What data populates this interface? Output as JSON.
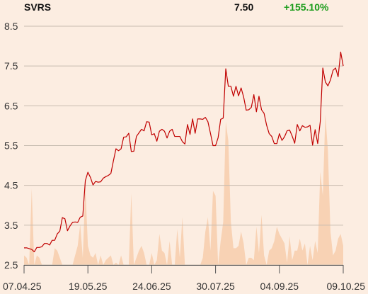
{
  "header": {
    "ticker": "SVRS",
    "last_price": "7.50",
    "change_pct": "+155.10%"
  },
  "colors": {
    "background": "#fcede1",
    "price_line": "#c00000",
    "volume_fill": "#f8d2b4",
    "grid": "#c7bcb0",
    "axis": "#555555",
    "change_positive": "#1a9c1a"
  },
  "chart_data": {
    "type": "line",
    "title": "",
    "xlabel": "",
    "ylabel": "",
    "ylim": [
      2.5,
      8.5
    ],
    "y_ticks": [
      "2.5",
      "3.5",
      "4.5",
      "5.5",
      "6.5",
      "7.5",
      "8.5"
    ],
    "x_ticks": [
      "07.04.25",
      "19.05.25",
      "24.06.25",
      "30.07.25",
      "04.09.25",
      "09.10.25"
    ],
    "grid": "horizontal",
    "series": [
      {
        "kind": "price-line",
        "values": [
          2.93,
          2.93,
          2.91,
          2.89,
          2.83,
          2.94,
          2.94,
          2.96,
          3.04,
          3.04,
          3.0,
          3.12,
          3.12,
          3.28,
          3.35,
          3.69,
          3.66,
          3.36,
          3.48,
          3.57,
          3.58,
          3.57,
          3.7,
          3.73,
          4.62,
          4.83,
          4.7,
          4.51,
          4.6,
          4.58,
          4.59,
          4.68,
          4.72,
          4.75,
          4.8,
          5.12,
          5.42,
          5.37,
          5.42,
          5.71,
          5.72,
          5.81,
          5.35,
          5.36,
          5.73,
          5.82,
          5.91,
          5.87,
          6.1,
          6.09,
          5.77,
          5.8,
          5.61,
          5.86,
          5.91,
          5.86,
          5.69,
          5.86,
          5.91,
          5.73,
          5.73,
          5.73,
          5.6,
          5.54,
          6.03,
          5.78,
          6.17,
          5.81,
          6.17,
          6.17,
          6.16,
          6.21,
          6.1,
          5.81,
          5.5,
          5.5,
          5.7,
          6.16,
          6.19,
          7.43,
          6.99,
          6.99,
          6.74,
          6.99,
          6.75,
          6.95,
          6.72,
          6.39,
          6.4,
          6.46,
          6.78,
          6.35,
          6.74,
          6.4,
          6.31,
          6.01,
          5.8,
          5.73,
          5.55,
          5.55,
          5.8,
          5.63,
          5.72,
          5.87,
          5.89,
          5.74,
          5.56,
          6.03,
          5.87,
          6.0,
          5.96,
          5.97,
          6.01,
          5.51,
          5.9,
          5.55,
          6.1,
          7.45,
          7.1,
          7.0,
          7.15,
          7.39,
          7.45,
          7.23,
          7.85,
          7.5
        ]
      },
      {
        "kind": "volume-area",
        "values": [
          0.04,
          0.03,
          0.0,
          0.32,
          0.0,
          0.04,
          0.03,
          0.0,
          0.0,
          0.0,
          0.0,
          0.0,
          0.07,
          0.06,
          0.03,
          0.0,
          0.0,
          0.0,
          0.0,
          0.0,
          0.04,
          0.08,
          0.17,
          0.03,
          0.33,
          0.08,
          0.04,
          0.03,
          0.05,
          0.0,
          0.04,
          0.0,
          0.02,
          0.03,
          0.04,
          0.0,
          0.01,
          0.0,
          0.04,
          0.0,
          0.0,
          0.0,
          0.3,
          0.0,
          0.03,
          0.06,
          0.08,
          0.05,
          0.0,
          0.0,
          0.05,
          0.0,
          0.02,
          0.13,
          0.06,
          0.05,
          0.0,
          0.1,
          0.0,
          0.0,
          0.15,
          0.03,
          0.2,
          0.0,
          0.0,
          0.0,
          0.0,
          0.0,
          0.0,
          0.0,
          0.03,
          0.14,
          0.2,
          0.06,
          0.31,
          0.29,
          0.0,
          0.1,
          0.18,
          0.6,
          0.52,
          0.18,
          0.07,
          0.07,
          0.08,
          0.14,
          0.09,
          0.0,
          0.03,
          0.03,
          0.02,
          0.16,
          0.05,
          0.21,
          0.04,
          0.0,
          0.06,
          0.07,
          0.1,
          0.16,
          0.13,
          0.11,
          0.09,
          0.01,
          0.12,
          0.02,
          0.06,
          0.06,
          0.11,
          0.06,
          0.09,
          0.0,
          0.08,
          0.02,
          0.1,
          0.05,
          0.39,
          0.29,
          0.63,
          0.48,
          0.14,
          0.04,
          0.06,
          0.11,
          0.13,
          0.08
        ]
      }
    ]
  }
}
